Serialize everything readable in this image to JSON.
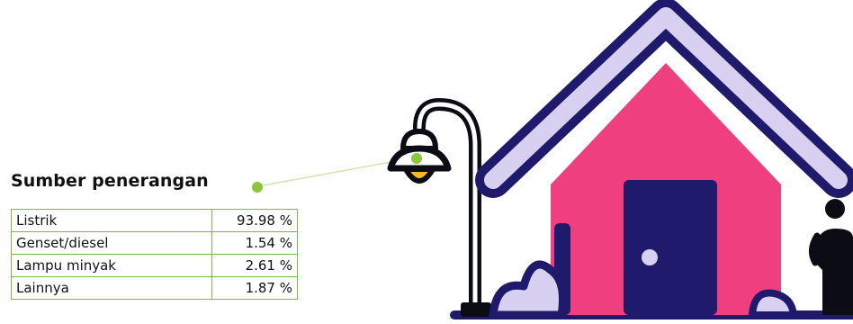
{
  "section": {
    "title": "Sumber penerangan"
  },
  "lighting_sources": [
    {
      "label": "Listrik",
      "value": "93.98 %"
    },
    {
      "label": "Genset/diesel",
      "value": "1.54 %"
    },
    {
      "label": "Lampu minyak",
      "value": "2.61 %"
    },
    {
      "label": "Lainnya",
      "value": "1.87 %"
    }
  ],
  "colors": {
    "navy": "#1f1a6b",
    "house_pink": "#ef3f7f",
    "roof_lavender": "#d8d0f0",
    "accent_green": "#8cc43c",
    "lamp_light": "#f5b92a"
  },
  "icons": [
    "street-lamp-icon",
    "house-icon",
    "person-icon"
  ]
}
